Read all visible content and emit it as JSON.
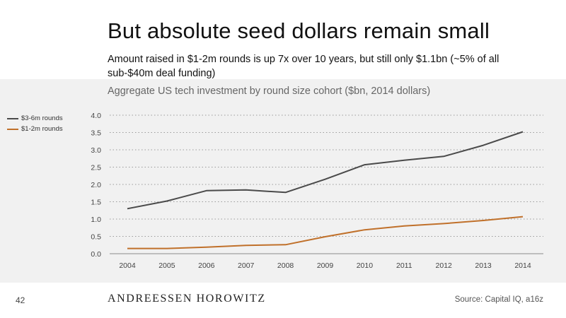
{
  "slide": {
    "title": "But absolute seed dollars remain small",
    "subtitle": "Amount raised in $1-2m rounds is up 7x over 10 years, but still only $1.1bn (~5% of all sub-$40m deal funding)",
    "page_number": "42",
    "logo_text": "ANDREESSEN HOROWITZ",
    "source": "Source: Capital IQ, a16z"
  },
  "chart_data": {
    "type": "line",
    "title": "Aggregate US tech investment by round size cohort ($bn, 2014 dollars)",
    "xlabel": "",
    "ylabel": "",
    "x": [
      "2004",
      "2005",
      "2006",
      "2007",
      "2008",
      "2009",
      "2010",
      "2011",
      "2012",
      "2013",
      "2014"
    ],
    "ylim": [
      0,
      4.0
    ],
    "yticks": [
      "0.0",
      "0.5",
      "1.0",
      "1.5",
      "2.0",
      "2.5",
      "3.0",
      "3.5",
      "4.0"
    ],
    "grid": "horizontal dotted",
    "legend_position": "left",
    "series": [
      {
        "name": "$3-6m rounds",
        "color": "#4a4a4a",
        "values": [
          1.3,
          1.52,
          1.82,
          1.84,
          1.77,
          2.15,
          2.57,
          2.7,
          2.81,
          3.13,
          3.52
        ]
      },
      {
        "name": "$1-2m rounds",
        "color": "#c0702a",
        "values": [
          0.15,
          0.15,
          0.19,
          0.24,
          0.26,
          0.49,
          0.69,
          0.8,
          0.87,
          0.96,
          1.07
        ]
      }
    ]
  }
}
